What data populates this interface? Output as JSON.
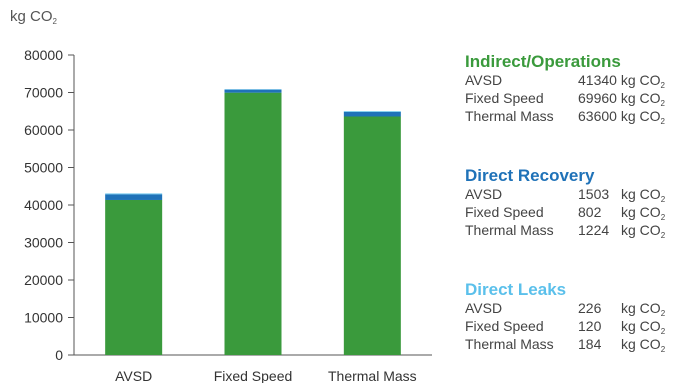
{
  "chart_data": {
    "type": "bar",
    "stacked": true,
    "categories": [
      "AVSD",
      "Fixed Speed",
      "Thermal Mass"
    ],
    "series": [
      {
        "name": "Indirect/Operations",
        "values": [
          41340,
          69960,
          63600
        ],
        "color": "#3a9a3c"
      },
      {
        "name": "Direct Recovery",
        "values": [
          1503,
          802,
          1224
        ],
        "color": "#1f72b8"
      },
      {
        "name": "Direct Leaks",
        "values": [
          226,
          120,
          184
        ],
        "color": "#5bc0eb"
      }
    ],
    "ylabel_main": "kg CO",
    "ylabel_sub": "2",
    "ylim": [
      0,
      80000
    ],
    "yticks": [
      "0",
      "10000",
      "20000",
      "30000",
      "40000",
      "50000",
      "60000",
      "70000",
      "80000"
    ],
    "grid": false,
    "legend_placement": "right"
  },
  "legend": {
    "unit_main": "kg CO",
    "unit_sub": "2",
    "groups": [
      {
        "title": "Indirect/Operations",
        "color": "#3a9a3c",
        "rows": [
          {
            "label": "AVSD",
            "value": "41340"
          },
          {
            "label": "Fixed Speed",
            "value": "69960"
          },
          {
            "label": "Thermal Mass",
            "value": "63600"
          }
        ]
      },
      {
        "title": "Direct Recovery",
        "color": "#1f72b8",
        "rows": [
          {
            "label": "AVSD",
            "value": "1503"
          },
          {
            "label": "Fixed Speed",
            "value": "802"
          },
          {
            "label": "Thermal Mass",
            "value": "1224"
          }
        ]
      },
      {
        "title": "Direct Leaks",
        "color": "#5bc0eb",
        "rows": [
          {
            "label": "AVSD",
            "value": "226"
          },
          {
            "label": "Fixed Speed",
            "value": "120"
          },
          {
            "label": "Thermal Mass",
            "value": "184"
          }
        ]
      }
    ]
  }
}
